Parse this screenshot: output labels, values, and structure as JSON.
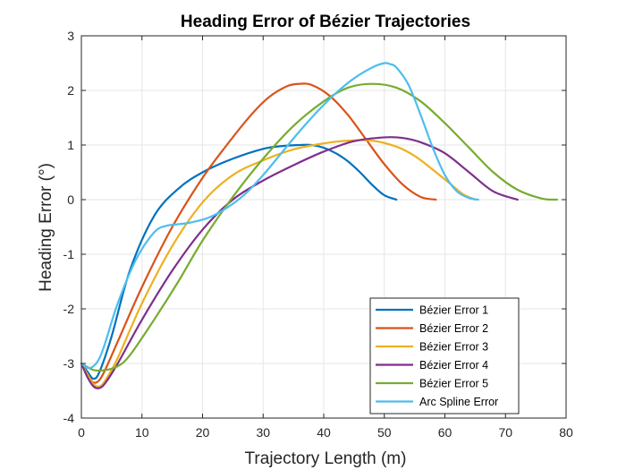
{
  "chart_data": {
    "type": "line",
    "title": "Heading Error of Bézier Trajectories",
    "xlabel": "Trajectory Length (m)",
    "ylabel": "Heading Error (°)",
    "xlim": [
      0,
      80
    ],
    "ylim": [
      -4,
      3
    ],
    "xticks": [
      0,
      10,
      20,
      30,
      40,
      50,
      60,
      70,
      80
    ],
    "yticks": [
      -4,
      -3,
      -2,
      -1,
      0,
      1,
      2,
      3
    ],
    "grid": true,
    "legend_position": "bottom-right",
    "series": [
      {
        "name": "Bézier Error 1",
        "color": "#0072BD",
        "x": [
          0,
          1,
          2,
          3,
          5,
          8,
          12,
          16,
          20,
          25,
          30,
          33,
          36,
          38,
          40,
          42,
          44,
          46,
          48,
          50,
          52
        ],
        "y": [
          -3.0,
          -3.15,
          -3.28,
          -3.15,
          -2.5,
          -1.3,
          -0.3,
          0.2,
          0.5,
          0.75,
          0.93,
          0.98,
          1.0,
          1.0,
          0.95,
          0.85,
          0.7,
          0.5,
          0.27,
          0.08,
          0.0
        ]
      },
      {
        "name": "Bézier Error 2",
        "color": "#D95319",
        "x": [
          0,
          1,
          2,
          3,
          4,
          6,
          10,
          15,
          20,
          24,
          28,
          31,
          34,
          36,
          38,
          41,
          44,
          47,
          50,
          53,
          56,
          58.5
        ],
        "y": [
          -3.0,
          -3.2,
          -3.35,
          -3.3,
          -3.1,
          -2.6,
          -1.6,
          -0.5,
          0.4,
          1.0,
          1.55,
          1.88,
          2.08,
          2.12,
          2.1,
          1.9,
          1.55,
          1.1,
          0.65,
          0.28,
          0.05,
          0.0
        ]
      },
      {
        "name": "Bézier Error 3",
        "color": "#EDB120",
        "x": [
          0,
          1,
          2,
          3,
          4,
          6,
          10,
          15,
          20,
          25,
          30,
          35,
          40,
          44,
          48,
          52,
          55,
          58,
          61,
          63,
          65
        ],
        "y": [
          -3.0,
          -3.2,
          -3.38,
          -3.42,
          -3.3,
          -2.9,
          -1.9,
          -0.85,
          -0.05,
          0.45,
          0.72,
          0.92,
          1.03,
          1.08,
          1.08,
          0.97,
          0.8,
          0.55,
          0.28,
          0.1,
          0.0
        ]
      },
      {
        "name": "Bézier Error 4",
        "color": "#7E2F8E",
        "x": [
          0,
          1,
          2,
          3,
          4,
          6,
          10,
          15,
          20,
          25,
          30,
          35,
          40,
          45,
          50,
          53,
          56,
          60,
          64,
          68,
          72
        ],
        "y": [
          -3.0,
          -3.25,
          -3.42,
          -3.45,
          -3.35,
          -3.0,
          -2.2,
          -1.3,
          -0.55,
          0.0,
          0.35,
          0.63,
          0.88,
          1.07,
          1.14,
          1.13,
          1.05,
          0.85,
          0.5,
          0.15,
          0.0
        ]
      },
      {
        "name": "Bézier Error 5",
        "color": "#77AC30",
        "x": [
          0,
          2,
          4,
          6,
          8,
          12,
          16,
          20,
          25,
          30,
          35,
          40,
          44,
          48,
          52,
          56,
          60,
          64,
          68,
          72,
          76,
          78.5
        ],
        "y": [
          -3.0,
          -3.12,
          -3.12,
          -3.05,
          -2.85,
          -2.2,
          -1.5,
          -0.75,
          0.05,
          0.75,
          1.35,
          1.8,
          2.05,
          2.12,
          2.05,
          1.8,
          1.4,
          0.95,
          0.5,
          0.18,
          0.02,
          0.0
        ]
      },
      {
        "name": "Arc Spline Error",
        "color": "#4DBEEE",
        "x": [
          0,
          1,
          2,
          3,
          4,
          6,
          9,
          12,
          14,
          16,
          18,
          21,
          24,
          27,
          30,
          33,
          36,
          39,
          42,
          45,
          48,
          50,
          51,
          52,
          54,
          56,
          58,
          60,
          62,
          64,
          65.5
        ],
        "y": [
          -3.0,
          -3.08,
          -3.05,
          -2.9,
          -2.6,
          -1.9,
          -1.1,
          -0.6,
          -0.48,
          -0.45,
          -0.42,
          -0.33,
          -0.15,
          0.1,
          0.45,
          0.85,
          1.25,
          1.62,
          1.95,
          2.22,
          2.42,
          2.5,
          2.48,
          2.42,
          2.1,
          1.55,
          0.95,
          0.45,
          0.15,
          0.03,
          0.0
        ]
      }
    ]
  }
}
